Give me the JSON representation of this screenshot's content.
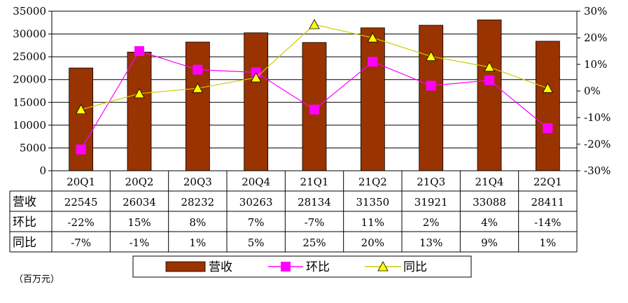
{
  "chart_data": {
    "type": "bar",
    "categories": [
      "20Q1",
      "20Q2",
      "20Q3",
      "20Q4",
      "21Q1",
      "21Q2",
      "21Q3",
      "21Q4",
      "22Q1"
    ],
    "series": [
      {
        "name": "营收",
        "type": "bar",
        "axis": "left",
        "values": [
          22545,
          26034,
          28232,
          30263,
          28134,
          31350,
          31921,
          33088,
          28411
        ],
        "color": "#993300"
      },
      {
        "name": "环比",
        "type": "line",
        "axis": "right",
        "values": [
          -22,
          15,
          8,
          7,
          -7,
          11,
          2,
          4,
          -14
        ],
        "color": "#FF00FF",
        "marker": "square"
      },
      {
        "name": "同比",
        "type": "line",
        "axis": "right",
        "values": [
          -7,
          -1,
          1,
          5,
          25,
          20,
          13,
          9,
          1
        ],
        "color": "#CCCC00",
        "marker": "triangle",
        "marker_color": "#FFFF00"
      }
    ],
    "y_left": {
      "min": 0,
      "max": 35000,
      "ticks": [
        "0",
        "5000",
        "10000",
        "15000",
        "20000",
        "25000",
        "30000",
        "35000"
      ]
    },
    "y_right": {
      "min": -30,
      "max": 30,
      "ticks": [
        "-30%",
        "-20%",
        "-10%",
        "0%",
        "10%",
        "20%",
        "30%"
      ]
    },
    "grid": true,
    "legend_position": "bottom",
    "data_table": {
      "rows": [
        {
          "label": "营收",
          "values": [
            "22545",
            "26034",
            "28232",
            "30263",
            "28134",
            "31350",
            "31921",
            "33088",
            "28411"
          ]
        },
        {
          "label": "环比",
          "values": [
            "-22%",
            "15%",
            "8%",
            "7%",
            "-7%",
            "11%",
            "2%",
            "4%",
            "-14%"
          ]
        },
        {
          "label": "同比",
          "values": [
            "-7%",
            "-1%",
            "1%",
            "5%",
            "25%",
            "20%",
            "13%",
            "9%",
            "1%"
          ]
        }
      ]
    },
    "unit_note": "（百万元）"
  }
}
